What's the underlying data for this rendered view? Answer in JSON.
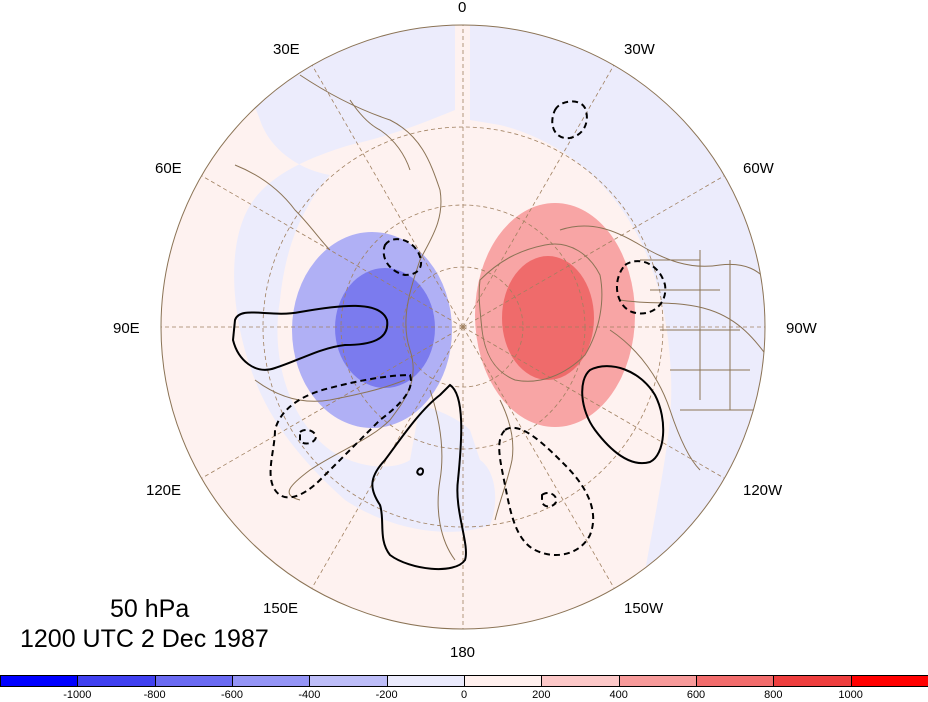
{
  "map": {
    "projection": "north-polar-stereographic",
    "background_color": "#fef2f0",
    "coastline_color": "#8b7355",
    "graticule_color": "#a08060",
    "longitude_labels": [
      {
        "id": "lon-0",
        "text": "0"
      },
      {
        "id": "lon-30w",
        "text": "30W"
      },
      {
        "id": "lon-60w",
        "text": "60W"
      },
      {
        "id": "lon-90w",
        "text": "90W"
      },
      {
        "id": "lon-120w",
        "text": "120W"
      },
      {
        "id": "lon-150w",
        "text": "150W"
      },
      {
        "id": "lon-180",
        "text": "180"
      },
      {
        "id": "lon-150e",
        "text": "150E"
      },
      {
        "id": "lon-120e",
        "text": "120E"
      },
      {
        "id": "lon-90e",
        "text": "90E"
      },
      {
        "id": "lon-60e",
        "text": "60E"
      },
      {
        "id": "lon-30e",
        "text": "30E"
      }
    ],
    "anomaly_regions": [
      {
        "name": "negative-anomaly-center",
        "level": -600,
        "color": "#7b7bee"
      },
      {
        "name": "negative-anomaly-ring",
        "level": -400,
        "color": "#b0b0f5"
      },
      {
        "name": "positive-anomaly-center",
        "level": 600,
        "color": "#ef6b6b"
      },
      {
        "name": "positive-anomaly-ring",
        "level": 400,
        "color": "#f8a5a5"
      }
    ],
    "contour_styles": {
      "positive": "solid",
      "negative": "dashed",
      "color": "#000000"
    }
  },
  "title": {
    "level": "50 hPa",
    "datetime": "1200 UTC 2 Dec 1987"
  },
  "colorbar": {
    "colors": [
      "#0000ff",
      "#4040f0",
      "#6a6af2",
      "#9494f5",
      "#bdbdf8",
      "#eaeafc",
      "#fff0ee",
      "#fcc8c8",
      "#f79a9a",
      "#f26c6c",
      "#ee3e3e",
      "#ff0000"
    ],
    "tick_labels": [
      "-1000",
      "-800",
      "-600",
      "-400",
      "-200",
      "0",
      "200",
      "400",
      "600",
      "800",
      "1000"
    ]
  }
}
